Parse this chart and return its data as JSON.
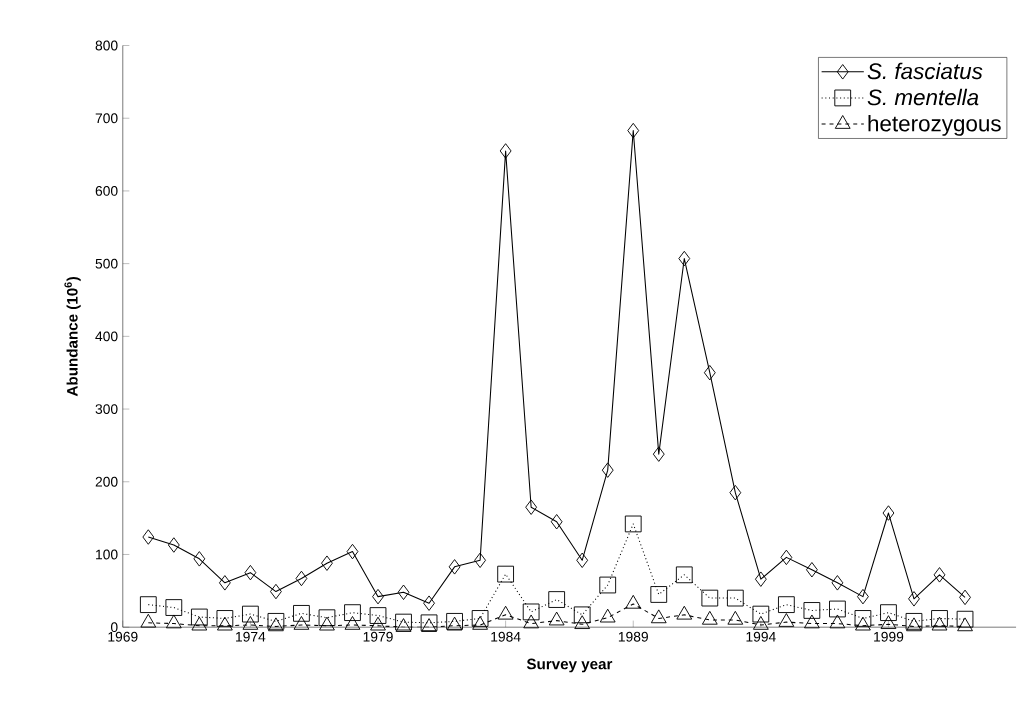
{
  "chart_data": {
    "type": "line",
    "xlabel": "Survey year",
    "ylabel": "Abundance (10$^{6}$)",
    "x": [
      1970,
      1971,
      1972,
      1973,
      1974,
      1975,
      1976,
      1977,
      1978,
      1979,
      1980,
      1981,
      1982,
      1983,
      1984,
      1985,
      1986,
      1987,
      1988,
      1989,
      1990,
      1991,
      1992,
      1993,
      1994,
      1995,
      1996,
      1997,
      1998,
      1999,
      2000,
      2001,
      2002
    ],
    "series": [
      {
        "name": "*S. fasciatus*",
        "color": "#000000",
        "marker": "diamond",
        "line_style": "solid",
        "values": [
          124,
          113,
          94,
          61,
          75,
          49,
          67,
          88,
          104,
          42,
          48,
          33,
          83,
          92,
          655,
          165,
          145,
          92,
          216,
          683,
          238,
          507,
          350,
          185,
          66,
          96,
          79,
          61,
          42,
          157,
          39,
          72,
          41
        ]
      },
      {
        "name": "*S. mentella*",
        "color": "#000000",
        "marker": "square",
        "line_style": "dotted",
        "values": [
          31,
          27,
          14,
          12,
          18,
          8,
          19,
          13,
          20,
          16,
          7,
          6,
          8,
          12,
          73,
          21,
          38,
          17,
          58,
          142,
          45,
          72,
          40,
          40,
          18,
          31,
          23,
          25,
          12,
          20,
          8,
          12,
          11
        ]
      },
      {
        "name": "heterozygous",
        "color": "#000000",
        "marker": "triangle",
        "line_style": "dashed",
        "values": [
          6,
          5,
          2,
          2,
          3,
          1,
          3,
          2,
          3,
          2,
          0,
          0,
          2,
          3,
          17,
          5,
          9,
          4,
          13,
          32,
          12,
          17,
          10,
          10,
          3,
          7,
          5,
          5,
          2,
          4,
          1,
          2,
          1
        ]
      }
    ],
    "xlim": [
      1969,
      2004
    ],
    "ylim": [
      0,
      800
    ],
    "xticks": [
      1969,
      1974,
      1979,
      1984,
      1989,
      1994,
      1999
    ],
    "yticks": [
      0,
      100,
      200,
      300,
      400,
      500,
      600,
      700,
      800
    ],
    "legend": "top right"
  }
}
